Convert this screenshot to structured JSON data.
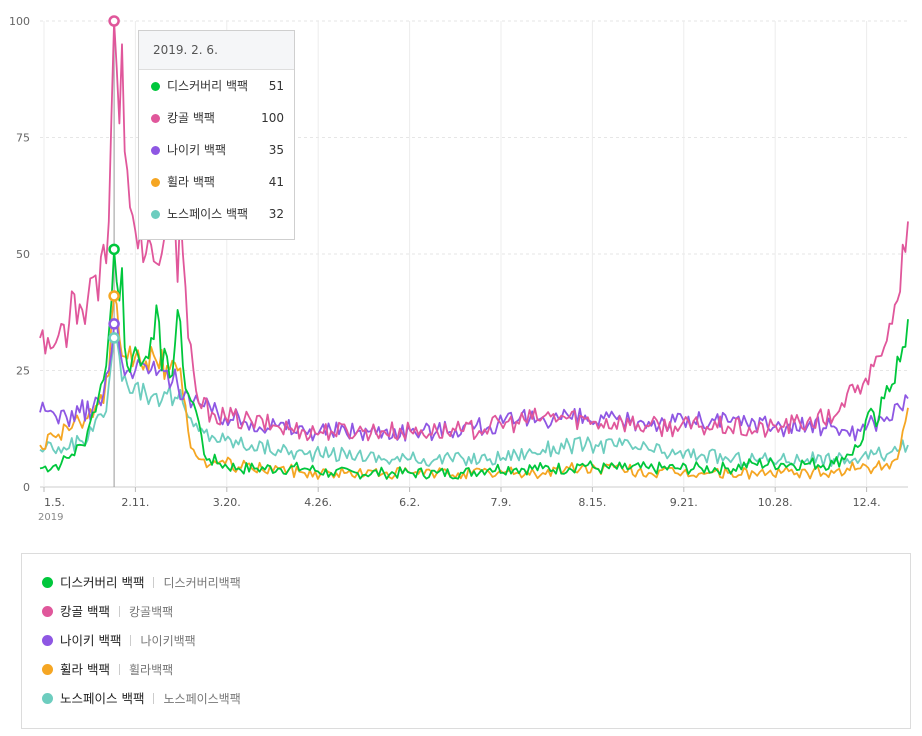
{
  "chart_data": {
    "type": "line",
    "ylim": [
      0,
      100
    ],
    "y_ticks": [
      "0",
      "25",
      "50",
      "75",
      "100"
    ],
    "x_ticks": [
      "1.5.",
      "2.11.",
      "3.20.",
      "4.26.",
      "6.2.",
      "7.9.",
      "8.15.",
      "9.21.",
      "10.28.",
      "12.4."
    ],
    "x_year_label": "2019",
    "grid": "on",
    "hover_date": "2019.2.6.",
    "tooltip_title": "2019. 2. 6.",
    "series": [
      {
        "name": "디스커버리 백팩",
        "keyword": "디스커버리백팩",
        "color": "#00c73c",
        "hover_value": "51",
        "anchors": [
          [
            0,
            4
          ],
          [
            8,
            5
          ],
          [
            12,
            7
          ],
          [
            16,
            9
          ],
          [
            18,
            12
          ],
          [
            20,
            16
          ],
          [
            22,
            19
          ],
          [
            24,
            23
          ],
          [
            25,
            26
          ],
          [
            26,
            33
          ],
          [
            27,
            40
          ],
          [
            28,
            51
          ],
          [
            29,
            44
          ],
          [
            30,
            40
          ],
          [
            31,
            47
          ],
          [
            32,
            30
          ],
          [
            33,
            26
          ],
          [
            35,
            28
          ],
          [
            36,
            30
          ],
          [
            38,
            26
          ],
          [
            40,
            28
          ],
          [
            42,
            32
          ],
          [
            44,
            39
          ],
          [
            46,
            25
          ],
          [
            48,
            28
          ],
          [
            50,
            24
          ],
          [
            52,
            38
          ],
          [
            54,
            26
          ],
          [
            56,
            20
          ],
          [
            58,
            18
          ],
          [
            60,
            14
          ],
          [
            62,
            7
          ],
          [
            64,
            6
          ],
          [
            68,
            5
          ],
          [
            75,
            4
          ],
          [
            82,
            4
          ],
          [
            90,
            4
          ],
          [
            100,
            4
          ],
          [
            110,
            3
          ],
          [
            120,
            3
          ],
          [
            130,
            3
          ],
          [
            140,
            3
          ],
          [
            150,
            3
          ],
          [
            160,
            3
          ],
          [
            170,
            4
          ],
          [
            180,
            4
          ],
          [
            190,
            4
          ],
          [
            200,
            4
          ],
          [
            205,
            5
          ],
          [
            210,
            4
          ],
          [
            220,
            4
          ],
          [
            230,
            4
          ],
          [
            240,
            4
          ],
          [
            250,
            4
          ],
          [
            260,
            4
          ],
          [
            270,
            5
          ],
          [
            280,
            5
          ],
          [
            290,
            5
          ],
          [
            300,
            5
          ],
          [
            305,
            7
          ],
          [
            310,
            9
          ],
          [
            313,
            16
          ],
          [
            316,
            13
          ],
          [
            319,
            19
          ],
          [
            322,
            22
          ],
          [
            324,
            28
          ],
          [
            326,
            30
          ],
          [
            328,
            36
          ]
        ]
      },
      {
        "name": "캉골 백팩",
        "keyword": "캉골백팩",
        "color": "#e0579b",
        "hover_value": "100",
        "anchors": [
          [
            0,
            32
          ],
          [
            3,
            32
          ],
          [
            5,
            30
          ],
          [
            8,
            35
          ],
          [
            10,
            30
          ],
          [
            12,
            42
          ],
          [
            14,
            35
          ],
          [
            16,
            38
          ],
          [
            18,
            40
          ],
          [
            20,
            45
          ],
          [
            22,
            40
          ],
          [
            24,
            52
          ],
          [
            25,
            48
          ],
          [
            26,
            57
          ],
          [
            27,
            80
          ],
          [
            28,
            100
          ],
          [
            29,
            90
          ],
          [
            30,
            78
          ],
          [
            31,
            95
          ],
          [
            32,
            72
          ],
          [
            33,
            68
          ],
          [
            34,
            60
          ],
          [
            36,
            55
          ],
          [
            38,
            55
          ],
          [
            40,
            50
          ],
          [
            42,
            52
          ],
          [
            44,
            48
          ],
          [
            46,
            50
          ],
          [
            48,
            54
          ],
          [
            50,
            58
          ],
          [
            52,
            44
          ],
          [
            53,
            60
          ],
          [
            54,
            50
          ],
          [
            56,
            32
          ],
          [
            58,
            25
          ],
          [
            60,
            18
          ],
          [
            65,
            16
          ],
          [
            70,
            15
          ],
          [
            80,
            14
          ],
          [
            90,
            13
          ],
          [
            100,
            12
          ],
          [
            110,
            12
          ],
          [
            120,
            12
          ],
          [
            130,
            12
          ],
          [
            140,
            12
          ],
          [
            150,
            12
          ],
          [
            160,
            12
          ],
          [
            170,
            13
          ],
          [
            180,
            14
          ],
          [
            190,
            15
          ],
          [
            200,
            15
          ],
          [
            210,
            14
          ],
          [
            220,
            14
          ],
          [
            230,
            13
          ],
          [
            240,
            13
          ],
          [
            250,
            13
          ],
          [
            260,
            13
          ],
          [
            270,
            12
          ],
          [
            280,
            13
          ],
          [
            290,
            14
          ],
          [
            300,
            15
          ],
          [
            303,
            18
          ],
          [
            305,
            20
          ],
          [
            310,
            20
          ],
          [
            313,
            22
          ],
          [
            316,
            28
          ],
          [
            319,
            30
          ],
          [
            322,
            35
          ],
          [
            324,
            40
          ],
          [
            326,
            52
          ],
          [
            328,
            57
          ]
        ]
      },
      {
        "name": "나이키 백팩",
        "keyword": "나이키백팩",
        "color": "#8e57e3",
        "hover_value": "35",
        "anchors": [
          [
            0,
            16
          ],
          [
            5,
            16
          ],
          [
            10,
            15
          ],
          [
            15,
            16
          ],
          [
            20,
            17
          ],
          [
            24,
            20
          ],
          [
            26,
            25
          ],
          [
            28,
            35
          ],
          [
            30,
            30
          ],
          [
            32,
            24
          ],
          [
            36,
            25
          ],
          [
            40,
            26
          ],
          [
            44,
            24
          ],
          [
            48,
            25
          ],
          [
            52,
            22
          ],
          [
            56,
            20
          ],
          [
            60,
            18
          ],
          [
            65,
            16
          ],
          [
            70,
            15
          ],
          [
            80,
            14
          ],
          [
            90,
            13
          ],
          [
            100,
            12
          ],
          [
            110,
            12
          ],
          [
            120,
            12
          ],
          [
            130,
            12
          ],
          [
            140,
            12
          ],
          [
            150,
            12
          ],
          [
            160,
            13
          ],
          [
            170,
            13
          ],
          [
            180,
            14
          ],
          [
            190,
            15
          ],
          [
            200,
            15
          ],
          [
            210,
            14
          ],
          [
            220,
            14
          ],
          [
            230,
            14
          ],
          [
            240,
            14
          ],
          [
            250,
            14
          ],
          [
            260,
            14
          ],
          [
            270,
            14
          ],
          [
            280,
            13
          ],
          [
            290,
            13
          ],
          [
            300,
            13
          ],
          [
            305,
            12
          ],
          [
            310,
            12
          ],
          [
            315,
            14
          ],
          [
            320,
            15
          ],
          [
            325,
            17
          ],
          [
            328,
            19
          ]
        ]
      },
      {
        "name": "휠라 백팩",
        "keyword": "휠라백팩",
        "color": "#f5a623",
        "hover_value": "41",
        "anchors": [
          [
            0,
            9
          ],
          [
            5,
            11
          ],
          [
            10,
            13
          ],
          [
            15,
            14
          ],
          [
            20,
            15
          ],
          [
            24,
            18
          ],
          [
            26,
            24
          ],
          [
            28,
            41
          ],
          [
            30,
            32
          ],
          [
            32,
            28
          ],
          [
            36,
            28
          ],
          [
            40,
            27
          ],
          [
            44,
            27
          ],
          [
            48,
            26
          ],
          [
            52,
            25
          ],
          [
            54,
            20
          ],
          [
            56,
            12
          ],
          [
            58,
            8
          ],
          [
            60,
            6
          ],
          [
            65,
            5
          ],
          [
            70,
            5
          ],
          [
            80,
            4
          ],
          [
            90,
            4
          ],
          [
            100,
            3
          ],
          [
            110,
            3
          ],
          [
            120,
            3
          ],
          [
            130,
            3
          ],
          [
            140,
            3
          ],
          [
            150,
            3
          ],
          [
            160,
            3
          ],
          [
            170,
            3
          ],
          [
            180,
            3
          ],
          [
            190,
            3
          ],
          [
            200,
            4
          ],
          [
            210,
            4
          ],
          [
            220,
            4
          ],
          [
            230,
            3
          ],
          [
            240,
            3
          ],
          [
            250,
            3
          ],
          [
            260,
            3
          ],
          [
            270,
            3
          ],
          [
            280,
            3
          ],
          [
            290,
            3
          ],
          [
            300,
            3
          ],
          [
            305,
            4
          ],
          [
            310,
            4
          ],
          [
            315,
            4
          ],
          [
            320,
            5
          ],
          [
            324,
            6
          ],
          [
            326,
            12
          ],
          [
            328,
            17
          ]
        ]
      },
      {
        "name": "노스페이스 백팩",
        "keyword": "노스페이스백팩",
        "color": "#6dcdbf",
        "hover_value": "32",
        "anchors": [
          [
            0,
            8
          ],
          [
            5,
            8
          ],
          [
            10,
            8
          ],
          [
            15,
            10
          ],
          [
            20,
            12
          ],
          [
            24,
            15
          ],
          [
            26,
            22
          ],
          [
            28,
            32
          ],
          [
            30,
            28
          ],
          [
            32,
            24
          ],
          [
            36,
            22
          ],
          [
            40,
            20
          ],
          [
            44,
            20
          ],
          [
            48,
            20
          ],
          [
            52,
            19
          ],
          [
            54,
            18
          ],
          [
            56,
            15
          ],
          [
            58,
            13
          ],
          [
            60,
            12
          ],
          [
            65,
            11
          ],
          [
            70,
            10
          ],
          [
            80,
            9
          ],
          [
            90,
            8
          ],
          [
            100,
            7
          ],
          [
            110,
            7
          ],
          [
            120,
            7
          ],
          [
            130,
            6
          ],
          [
            140,
            6
          ],
          [
            150,
            6
          ],
          [
            160,
            6
          ],
          [
            170,
            6
          ],
          [
            180,
            7
          ],
          [
            190,
            8
          ],
          [
            200,
            9
          ],
          [
            210,
            9
          ],
          [
            220,
            9
          ],
          [
            230,
            8
          ],
          [
            240,
            7
          ],
          [
            250,
            7
          ],
          [
            260,
            6
          ],
          [
            270,
            6
          ],
          [
            280,
            6
          ],
          [
            290,
            6
          ],
          [
            300,
            6
          ],
          [
            305,
            6
          ],
          [
            310,
            6
          ],
          [
            315,
            7
          ],
          [
            320,
            7
          ],
          [
            325,
            8
          ],
          [
            328,
            9
          ]
        ]
      }
    ]
  }
}
